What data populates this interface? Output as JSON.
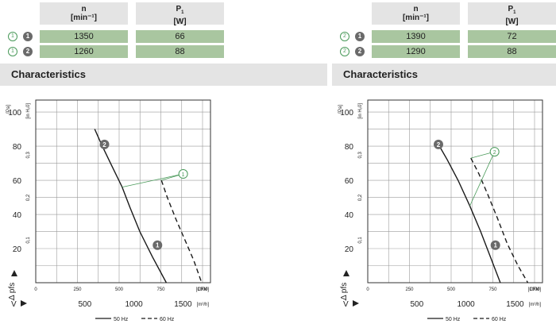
{
  "panels": [
    {
      "header": {
        "n_label": "n",
        "n_unit": "[min⁻¹]",
        "p_label": "P",
        "p_sub": "1",
        "p_unit": "[W]"
      },
      "rows": [
        {
          "curve_marker": "1",
          "speed_marker": "1",
          "n": "1350",
          "p": "66"
        },
        {
          "curve_marker": "1",
          "speed_marker": "2",
          "n": "1260",
          "p": "88"
        }
      ],
      "section_title": "Characteristics"
    },
    {
      "header": {
        "n_label": "n",
        "n_unit": "[min⁻¹]",
        "p_label": "P",
        "p_sub": "1",
        "p_unit": "[W]"
      },
      "rows": [
        {
          "curve_marker": "2",
          "speed_marker": "1",
          "n": "1390",
          "p": "72"
        },
        {
          "curve_marker": "2",
          "speed_marker": "2",
          "n": "1290",
          "p": "88"
        }
      ],
      "section_title": "Characteristics"
    }
  ],
  "chart_data": [
    {
      "type": "line",
      "x_unit_primary": "[m³/h]",
      "x_unit_secondary": "[CFM]",
      "y_unit_primary": "[Pa]",
      "y_unit_secondary": "[in H₂0]",
      "ylabel": "Δ p",
      "ylabel_sub": "fs",
      "xlabel": "V̇",
      "xlim_m3h": [
        0,
        1780
      ],
      "ylim_pa": [
        0,
        107
      ],
      "x_ticks_m3h": [
        500,
        1000,
        1500
      ],
      "x_ticks_cfm": [
        0,
        250,
        500,
        750,
        1000
      ],
      "y_ticks_pa": [
        20,
        40,
        60,
        80,
        100
      ],
      "y_ticks_inh2o": [
        "0,1",
        "0,2",
        "0,3"
      ],
      "grid": true,
      "legend": [
        "50 Hz",
        "60 Hz"
      ],
      "legend_position": "bottom-right",
      "series": [
        {
          "name": "50 Hz",
          "style": "solid",
          "x": [
            600,
            670,
            770,
            880,
            960,
            1060,
            1190,
            1330
          ],
          "y": [
            90,
            81,
            69,
            56,
            44,
            30,
            15,
            0
          ]
        },
        {
          "name": "60 Hz",
          "style": "dashed",
          "x": [
            1280,
            1340,
            1430,
            1520,
            1610,
            1690
          ],
          "y": [
            60,
            50,
            37,
            25,
            13,
            0
          ]
        }
      ],
      "curve_callout": "1",
      "point_markers": [
        {
          "label": "2",
          "x": 700,
          "y": 81
        },
        {
          "label": "1",
          "x": 1240,
          "y": 22
        }
      ]
    },
    {
      "type": "line",
      "x_unit_primary": "[m³/h]",
      "x_unit_secondary": "[CFM]",
      "y_unit_primary": "[Pa]",
      "y_unit_secondary": "[in H₂0]",
      "ylabel": "Δ p",
      "ylabel_sub": "fs",
      "xlabel": "V̇",
      "xlim_m3h": [
        0,
        1780
      ],
      "ylim_pa": [
        0,
        107
      ],
      "x_ticks_m3h": [
        500,
        1000,
        1500
      ],
      "x_ticks_cfm": [
        0,
        250,
        500,
        750,
        1000
      ],
      "y_ticks_pa": [
        20,
        40,
        60,
        80,
        100
      ],
      "y_ticks_inh2o": [
        "0,1",
        "0,2",
        "0,3"
      ],
      "grid": true,
      "legend": [
        "50 Hz",
        "60 Hz"
      ],
      "legend_position": "bottom-right",
      "series": [
        {
          "name": "50 Hz",
          "style": "solid",
          "x": [
            720,
            810,
            920,
            1040,
            1150,
            1250,
            1350
          ],
          "y": [
            81,
            72,
            60,
            45,
            30,
            15,
            0
          ]
        },
        {
          "name": "60 Hz",
          "style": "dashed",
          "x": [
            1050,
            1130,
            1220,
            1320,
            1420,
            1530,
            1630
          ],
          "y": [
            73,
            64,
            52,
            38,
            23,
            10,
            0
          ]
        }
      ],
      "curve_callout": "2",
      "point_markers": [
        {
          "label": "2",
          "x": 720,
          "y": 81
        },
        {
          "label": "1",
          "x": 1300,
          "y": 22
        }
      ]
    }
  ],
  "colors": {
    "header_bg": "#e4e4e4",
    "cell_bg": "#a9c6a0",
    "accent_green": "#4a9a5a",
    "marker_grey": "#6a6a6a"
  }
}
